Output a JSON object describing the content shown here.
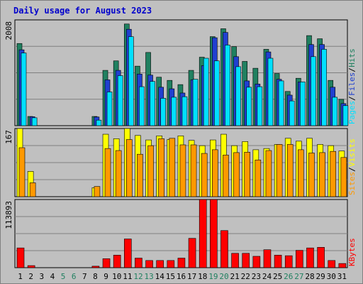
{
  "title": "Daily usage for August 2023",
  "colors": {
    "background": "#c0c0c0",
    "plot": "#c0c0c0",
    "title": "#0000cc",
    "hits": "#208060",
    "files": "#2040d0",
    "pages": "#00e0ff",
    "visits": "#ffff00",
    "sites": "#ff9900",
    "kbytes": "#ff0000",
    "weekend_label": "#208060",
    "weekday_label": "#000000"
  },
  "weekend_days": [
    5,
    6,
    12,
    13,
    19,
    20,
    26,
    27
  ],
  "chart_data": [
    {
      "type": "bar",
      "name": "hits-files-pages",
      "ymax_label": "2008",
      "ylim": [
        0,
        2008
      ],
      "legend": [
        "Pages",
        "Files",
        "Hits"
      ],
      "categories": [
        "1",
        "2",
        "3",
        "4",
        "5",
        "6",
        "7",
        "8",
        "9",
        "10",
        "11",
        "12",
        "13",
        "14",
        "15",
        "16",
        "17",
        "18",
        "19",
        "20",
        "21",
        "22",
        "23",
        "24",
        "25",
        "26",
        "27",
        "28",
        "29",
        "30",
        "31"
      ],
      "series": [
        {
          "name": "Hits",
          "values": [
            1560,
            175,
            0,
            0,
            0,
            0,
            0,
            175,
            1050,
            1230,
            1930,
            1130,
            1390,
            920,
            860,
            780,
            1050,
            1300,
            1690,
            1840,
            1500,
            1220,
            1090,
            1450,
            990,
            650,
            900,
            1710,
            1650,
            860,
            500
          ]
        },
        {
          "name": "Files",
          "values": [
            1440,
            170,
            0,
            0,
            0,
            0,
            0,
            165,
            870,
            1050,
            1830,
            980,
            960,
            730,
            700,
            620,
            870,
            1140,
            1670,
            1770,
            1310,
            850,
            790,
            1400,
            880,
            580,
            830,
            1540,
            1540,
            730,
            420
          ]
        },
        {
          "name": "Pages",
          "values": [
            1380,
            150,
            0,
            0,
            0,
            0,
            0,
            105,
            640,
            950,
            1690,
            740,
            840,
            520,
            540,
            550,
            880,
            1280,
            1230,
            1530,
            1120,
            730,
            740,
            1280,
            850,
            470,
            830,
            1310,
            1450,
            540,
            380
          ]
        }
      ]
    },
    {
      "type": "bar",
      "name": "visits-sites",
      "ymax_label": "167",
      "ylim": [
        0,
        167
      ],
      "legend": [
        "Sites",
        "Visits"
      ],
      "categories": [
        "1",
        "2",
        "3",
        "4",
        "5",
        "6",
        "7",
        "8",
        "9",
        "10",
        "11",
        "12",
        "13",
        "14",
        "15",
        "16",
        "17",
        "18",
        "19",
        "20",
        "21",
        "22",
        "23",
        "24",
        "25",
        "26",
        "27",
        "28",
        "29",
        "30",
        "31"
      ],
      "series": [
        {
          "name": "Visits",
          "values": [
            167,
            62,
            0,
            0,
            0,
            0,
            0,
            22,
            153,
            142,
            167,
            150,
            139,
            149,
            140,
            149,
            138,
            125,
            139,
            153,
            125,
            135,
            115,
            118,
            128,
            143,
            136,
            143,
            128,
            125,
            112
          ]
        },
        {
          "name": "Sites",
          "values": [
            120,
            34,
            0,
            0,
            0,
            0,
            0,
            25,
            118,
            113,
            140,
            104,
            125,
            142,
            143,
            127,
            127,
            106,
            115,
            102,
            108,
            109,
            90,
            113,
            128,
            128,
            115,
            107,
            108,
            111,
            96
          ]
        }
      ]
    },
    {
      "type": "bar",
      "name": "kbytes",
      "ymax_label": "113893",
      "ylim": [
        0,
        113893
      ],
      "legend": [
        "KBytes"
      ],
      "categories": [
        "1",
        "2",
        "3",
        "4",
        "5",
        "6",
        "7",
        "8",
        "9",
        "10",
        "11",
        "12",
        "13",
        "14",
        "15",
        "16",
        "17",
        "18",
        "19",
        "20",
        "21",
        "22",
        "23",
        "24",
        "25",
        "26",
        "27",
        "28",
        "29",
        "30",
        "31"
      ],
      "series": [
        {
          "name": "KBytes",
          "values": [
            33000,
            3500,
            0,
            0,
            0,
            0,
            0,
            2500,
            15000,
            21000,
            48000,
            16000,
            12000,
            12000,
            12000,
            16000,
            49000,
            113893,
            113893,
            62000,
            24000,
            24000,
            19000,
            30000,
            21000,
            20000,
            29000,
            33000,
            34000,
            12000,
            7000
          ]
        }
      ]
    }
  ]
}
